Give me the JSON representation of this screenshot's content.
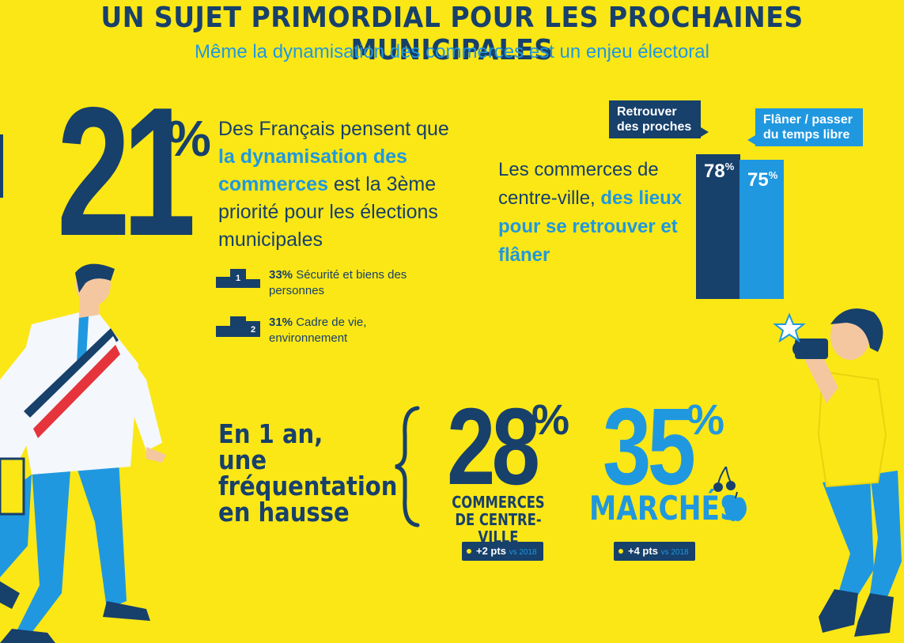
{
  "header": {
    "title": "UN SUJET PRIMORDIAL POUR LES PROCHAINES MUNICIPALES",
    "subtitle": "Même la dynamisation des commerces est un enjeu électoral"
  },
  "stat21": {
    "value": "21",
    "pct": "%",
    "text_part1": "Des Français pensent que ",
    "text_highlight": "la dynamisation des commerces",
    "text_part2": " est la 3ème priorité pour les élections municipales"
  },
  "ranking": [
    {
      "rank": "1",
      "pct": "33%",
      "label": "Sécurité et biens des personnes"
    },
    {
      "rank": "2",
      "pct": "31%",
      "label": "Cadre de vie, environnement"
    }
  ],
  "commerces": {
    "text_part1": "Les commerces de centre-ville, ",
    "text_highlight": "des lieux pour se retrouver et flâner"
  },
  "chart_data": {
    "type": "bar",
    "categories": [
      "Retrouver des proches",
      "Flâner / passer du temps libre"
    ],
    "values": [
      78,
      75
    ],
    "value_labels": [
      "78",
      "75"
    ],
    "pct": "%",
    "colors": [
      "#17406b",
      "#1f98e0"
    ]
  },
  "frequentation": {
    "text": "En 1 an, une fréquentation en hausse",
    "items": [
      {
        "value": "28",
        "pct": "%",
        "caption": "COMMERCES DE CENTRE-VILLE",
        "delta": "+2 pts",
        "vs": "vs 2018"
      },
      {
        "value": "35",
        "pct": "%",
        "caption": "MARCHÉS",
        "delta": "+4 pts",
        "vs": "vs 2018"
      }
    ]
  },
  "colors": {
    "background": "#fbe716",
    "navy": "#17406b",
    "blue": "#1f98e0"
  },
  "icons": [
    "podium-icon",
    "cherry-icon",
    "apple-icon",
    "camera-flash-icon"
  ]
}
